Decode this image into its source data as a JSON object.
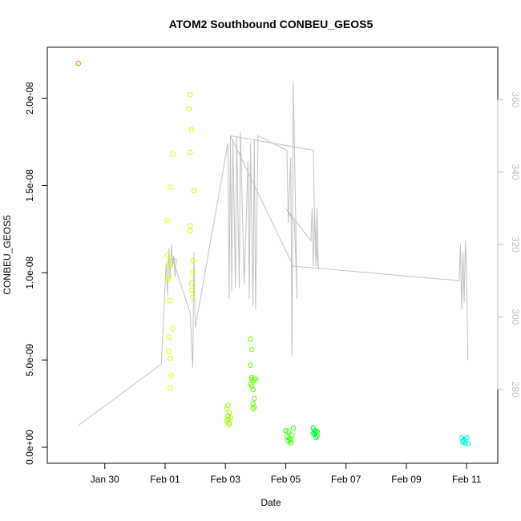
{
  "chart_data": {
    "type": "scatter",
    "title": "ATOM2 Southbound CONBEU_GEOS5",
    "xlabel": "Date",
    "ylabel": "CONBEU_GEOS5",
    "xlim": [
      "2016-01-28T15:00",
      "2016-02-11T12:00"
    ],
    "ylim": [
      0,
      2.2e-08
    ],
    "x_ticks": [
      {
        "label": "Jan 30",
        "date": "2016-01-30"
      },
      {
        "label": "Feb 01",
        "date": "2016-02-01"
      },
      {
        "label": "Feb 03",
        "date": "2016-02-03"
      },
      {
        "label": "Feb 05",
        "date": "2016-02-05"
      },
      {
        "label": "Feb 07",
        "date": "2016-02-07"
      },
      {
        "label": "Feb 09",
        "date": "2016-02-09"
      },
      {
        "label": "Feb 11",
        "date": "2016-02-11"
      }
    ],
    "y_ticks": [
      {
        "label": "0.0e+00",
        "value": 0
      },
      {
        "label": "5.0e-09",
        "value": 5e-09
      },
      {
        "label": "1.0e-08",
        "value": 1e-08
      },
      {
        "label": "1.5e-08",
        "value": 1.5e-08
      },
      {
        "label": "2.0e-08",
        "value": 2e-08
      }
    ],
    "y2_ticks": [
      280,
      300,
      320,
      340,
      360
    ],
    "y2lim": [
      264,
      370
    ],
    "grid": false,
    "series": [
      {
        "kind": "points",
        "groups": [
          {
            "color": "#ff8000",
            "points": [
              [
                "2016-01-29T03:00",
                2.2e-08
              ]
            ]
          },
          {
            "color": "#e6ff00",
            "points": [
              [
                "2016-02-01T02:00",
                1.3e-08
              ],
              [
                "2016-02-01T02:00",
                1.1e-08
              ],
              [
                "2016-02-01T03:00",
                9.8e-09
              ],
              [
                "2016-02-01T02:00",
                9.6e-09
              ],
              [
                "2016-02-01T04:00",
                1.04e-08
              ],
              [
                "2016-02-01T03:00",
                1.06e-08
              ],
              [
                "2016-02-01T04:00",
                8.4e-09
              ],
              [
                "2016-02-01T03:00",
                6.3e-09
              ],
              [
                "2016-02-01T03:00",
                5.5e-09
              ],
              [
                "2016-02-01T04:00",
                5.1e-09
              ],
              [
                "2016-02-01T05:00",
                4.1e-09
              ],
              [
                "2016-02-01T04:00",
                3.4e-09
              ],
              [
                "2016-02-01T06:00",
                6.8e-09
              ],
              [
                "2016-02-01T06:00",
                1.68e-08
              ],
              [
                "2016-02-01T04:00",
                1.49e-08
              ]
            ]
          },
          {
            "color": "#ccff00",
            "points": [
              [
                "2016-02-01T20:00",
                2.02e-08
              ],
              [
                "2016-02-01T19:00",
                1.94e-08
              ],
              [
                "2016-02-01T21:00",
                1.82e-08
              ],
              [
                "2016-02-01T20:00",
                1.69e-08
              ],
              [
                "2016-02-01T23:00",
                1.47e-08
              ],
              [
                "2016-02-01T20:00",
                1.27e-08
              ],
              [
                "2016-02-01T20:00",
                1.24e-08
              ],
              [
                "2016-02-01T22:00",
                1.07e-08
              ],
              [
                "2016-02-01T22:00",
                1e-08
              ],
              [
                "2016-02-01T21:00",
                9.4e-09
              ],
              [
                "2016-02-01T21:00",
                9e-09
              ],
              [
                "2016-02-01T22:00",
                8.6e-09
              ]
            ]
          },
          {
            "color": "#99ff00",
            "points": [
              [
                "2016-02-03T02:00",
                2.4e-09
              ],
              [
                "2016-02-03T01:00",
                2.2e-09
              ],
              [
                "2016-02-03T03:00",
                2e-09
              ],
              [
                "2016-02-03T02:00",
                1.8e-09
              ],
              [
                "2016-02-03T02:00",
                1.6e-09
              ],
              [
                "2016-02-03T03:00",
                1.4e-09
              ],
              [
                "2016-02-03T04:00",
                1.7e-09
              ],
              [
                "2016-02-03T01:00",
                1.5e-09
              ],
              [
                "2016-02-03T03:00",
                1.3e-09
              ]
            ]
          },
          {
            "color": "#66ff00",
            "points": [
              [
                "2016-02-03T20:00",
                6.2e-09
              ],
              [
                "2016-02-03T21:00",
                5.6e-09
              ],
              [
                "2016-02-03T20:00",
                4.7e-09
              ],
              [
                "2016-02-03T21:00",
                4e-09
              ],
              [
                "2016-02-03T22:00",
                3.8e-09
              ],
              [
                "2016-02-03T20:00",
                3.6e-09
              ],
              [
                "2016-02-03T21:00",
                3.5e-09
              ],
              [
                "2016-02-03T23:00",
                3.9e-09
              ],
              [
                "2016-02-03T22:00",
                3.3e-09
              ],
              [
                "2016-02-03T23:00",
                2.8e-09
              ],
              [
                "2016-02-03T22:00",
                2.5e-09
              ],
              [
                "2016-02-03T23:00",
                2.3e-09
              ],
              [
                "2016-02-03T22:00",
                2.2e-09
              ],
              [
                "2016-02-04T00:00",
                3.9e-09
              ],
              [
                "2016-02-03T21:00",
                3.9e-09
              ]
            ]
          },
          {
            "color": "#33ff00",
            "points": [
              [
                "2016-02-05T00:00",
                9.5e-10
              ],
              [
                "2016-02-05T02:00",
                9e-10
              ],
              [
                "2016-02-05T01:00",
                6e-10
              ],
              [
                "2016-02-05T03:00",
                5e-10
              ],
              [
                "2016-02-05T02:00",
                3.5e-10
              ],
              [
                "2016-02-05T04:00",
                2.5e-10
              ],
              [
                "2016-02-05T06:00",
                1.1e-09
              ],
              [
                "2016-02-05T05:00",
                7e-10
              ],
              [
                "2016-02-05T04:00",
                4e-10
              ]
            ]
          },
          {
            "color": "#00ff33",
            "points": [
              [
                "2016-02-05T22:00",
                1.1e-09
              ],
              [
                "2016-02-05T23:00",
                9.5e-10
              ],
              [
                "2016-02-06T00:00",
                8.5e-10
              ],
              [
                "2016-02-05T23:00",
                7.5e-10
              ],
              [
                "2016-02-06T01:00",
                6.5e-10
              ],
              [
                "2016-02-06T00:00",
                5.5e-10
              ],
              [
                "2016-02-06T01:00",
                9e-10
              ],
              [
                "2016-02-05T22:00",
                8e-10
              ]
            ]
          },
          {
            "color": "#00ffcc",
            "points": [
              [
                "2016-02-10T20:00",
                5.5e-10
              ],
              [
                "2016-02-10T22:00",
                4.5e-10
              ],
              [
                "2016-02-10T21:00",
                3.5e-10
              ],
              [
                "2016-02-10T23:00",
                2.5e-10
              ],
              [
                "2016-02-11T01:00",
                2e-10
              ],
              [
                "2016-02-11T00:00",
                5.5e-10
              ],
              [
                "2016-02-10T21:00",
                3e-10
              ]
            ]
          }
        ]
      },
      {
        "kind": "line",
        "axis": "right",
        "color": "#c0c0c0",
        "points": [
          [
            "2016-01-29T03:00",
            270
          ],
          [
            "2016-01-31T21:00",
            287
          ],
          [
            "2016-02-01T00:00",
            309
          ],
          [
            "2016-02-01T01:00",
            315
          ],
          [
            "2016-02-01T02:00",
            306
          ],
          [
            "2016-02-01T03:00",
            319
          ],
          [
            "2016-02-01T04:00",
            310
          ],
          [
            "2016-02-01T05:00",
            320
          ],
          [
            "2016-02-01T06:00",
            314
          ],
          [
            "2016-02-01T07:00",
            317
          ],
          [
            "2016-02-01T08:00",
            311
          ],
          [
            "2016-02-01T09:00",
            316
          ],
          [
            "2016-02-01T06:00",
            316
          ],
          [
            "2016-02-01T20:00",
            301
          ],
          [
            "2016-02-01T21:00",
            293
          ],
          [
            "2016-02-01T22:00",
            286
          ],
          [
            "2016-02-01T23:00",
            318
          ],
          [
            "2016-02-02T00:00",
            297
          ],
          [
            "2016-02-03T02:00",
            348
          ],
          [
            "2016-02-03T03:00",
            305
          ],
          [
            "2016-02-03T04:00",
            350
          ],
          [
            "2016-02-03T05:00",
            307
          ],
          [
            "2016-02-03T06:00",
            349
          ],
          [
            "2016-02-03T08:00",
            308
          ],
          [
            "2016-02-03T09:00",
            350
          ],
          [
            "2016-02-03T11:00",
            308
          ],
          [
            "2016-02-03T12:00",
            351
          ],
          [
            "2016-02-03T15:00",
            309
          ],
          [
            "2016-02-03T18:00",
            343
          ],
          [
            "2016-02-03T19:00",
            305
          ],
          [
            "2016-02-03T20:00",
            348
          ],
          [
            "2016-02-03T22:00",
            303
          ],
          [
            "2016-02-03T23:00",
            349
          ],
          [
            "2016-02-04T00:00",
            302
          ],
          [
            "2016-02-04T02:00",
            350
          ],
          [
            "2016-02-05T01:00",
            346
          ],
          [
            "2016-02-05T02:00",
            326
          ],
          [
            "2016-02-05T04:00",
            344
          ],
          [
            "2016-02-05T05:00",
            289
          ],
          [
            "2016-02-05T06:00",
            365
          ],
          [
            "2016-02-05T08:00",
            326
          ],
          [
            "2016-02-05T09:00",
            305
          ],
          [
            "2016-02-05T07:00",
            326
          ],
          [
            "2016-02-05T00:00",
            330
          ],
          [
            "2016-02-05T20:00",
            321
          ],
          [
            "2016-02-05T21:00",
            330
          ],
          [
            "2016-02-05T22:00",
            314
          ],
          [
            "2016-02-05T23:00",
            330
          ],
          [
            "2016-02-06T00:00",
            314
          ],
          [
            "2016-02-06T01:00",
            330
          ],
          [
            "2016-02-06T02:00",
            313
          ],
          [
            "2016-02-05T23:00",
            326
          ],
          [
            "2016-02-05T22:00",
            346
          ],
          [
            "2016-02-03T04:00",
            350
          ],
          [
            "2016-02-05T06:00",
            314
          ],
          [
            "2016-02-10T18:00",
            310
          ],
          [
            "2016-02-10T19:00",
            320
          ],
          [
            "2016-02-10T20:00",
            302
          ],
          [
            "2016-02-10T21:00",
            318
          ],
          [
            "2016-02-10T22:00",
            304
          ],
          [
            "2016-02-10T23:00",
            321
          ],
          [
            "2016-02-11T00:00",
            310
          ],
          [
            "2016-02-11T01:00",
            288
          ]
        ]
      }
    ]
  }
}
